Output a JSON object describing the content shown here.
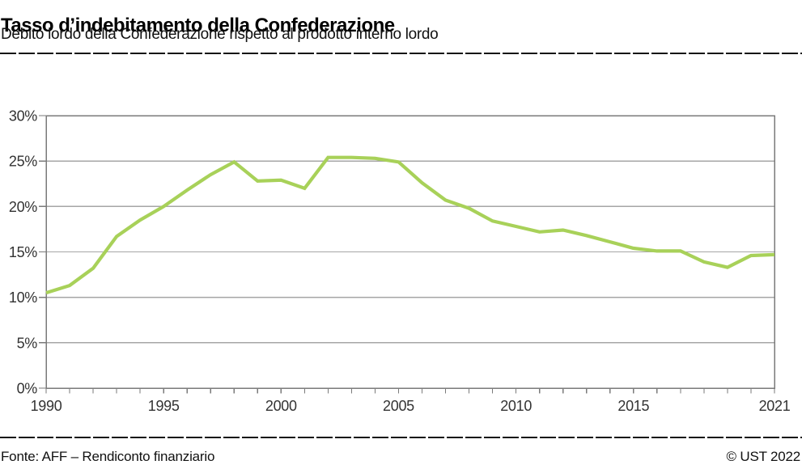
{
  "header": {
    "title": "Tasso d’indebitamento della Confederazione",
    "subtitle": "Debito lordo della Confederazione rispetto al prodotto interno lordo"
  },
  "footer": {
    "source": "Fonte: AFF – Rendiconto finanziario",
    "copyright": "© UST 2022"
  },
  "colors": {
    "line": "#a8d159",
    "grid": "#a6a6a6",
    "axis": "#7a7a7a",
    "tick_text": "#333333",
    "rule": "#141414"
  },
  "chart_data": {
    "type": "line",
    "title": "Tasso d’indebitamento della Confederazione",
    "subtitle": "Debito lordo della Confederazione rispetto al prodotto interno lordo",
    "x": [
      1990,
      1991,
      1992,
      1993,
      1994,
      1995,
      1996,
      1997,
      1998,
      1999,
      2000,
      2001,
      2002,
      2003,
      2004,
      2005,
      2006,
      2007,
      2008,
      2009,
      2010,
      2011,
      2012,
      2013,
      2014,
      2015,
      2016,
      2017,
      2018,
      2019,
      2020,
      2021
    ],
    "y": [
      10.5,
      11.3,
      13.2,
      16.7,
      18.5,
      20.0,
      21.8,
      23.5,
      24.9,
      22.8,
      22.9,
      22.0,
      25.4,
      25.4,
      25.3,
      24.9,
      22.6,
      20.7,
      19.8,
      18.4,
      17.8,
      17.2,
      17.4,
      16.8,
      16.1,
      15.4,
      15.1,
      15.1,
      13.9,
      13.3,
      14.6,
      14.7
    ],
    "ylim": [
      0,
      30
    ],
    "ytick_step": 5,
    "ytick_labels": [
      "0%",
      "5%",
      "10%",
      "15%",
      "20%",
      "25%",
      "30%"
    ],
    "xtick_years": [
      1990,
      1995,
      2000,
      2005,
      2010,
      2015,
      2021
    ],
    "xtick_labels": [
      "1990",
      "1995",
      "2000",
      "2005",
      "2010",
      "2015",
      "2021"
    ],
    "grid": "horizontal-only",
    "legend": "none",
    "unit": "%"
  }
}
